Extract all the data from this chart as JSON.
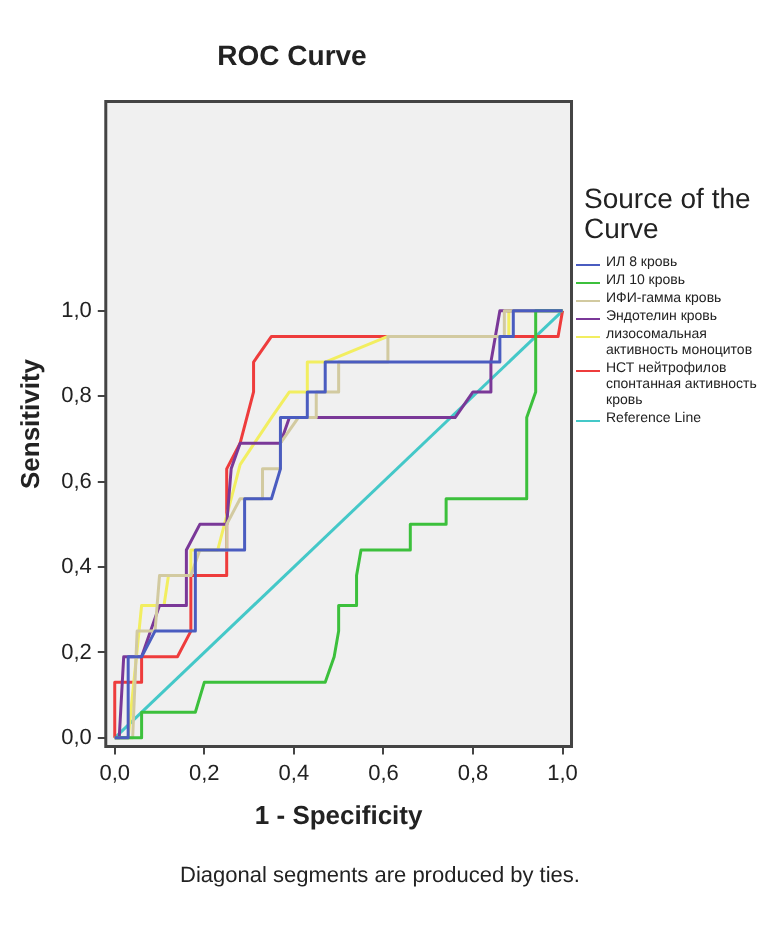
{
  "chart_data": {
    "type": "line",
    "title": "ROC Curve",
    "xlabel": "1 - Specificity",
    "ylabel": "Sensitivity",
    "legend_title": "Source of the Curve",
    "legend": "right",
    "grid": false,
    "marker": "none",
    "xlim": [
      -0.02,
      1.02
    ],
    "ylim": [
      -0.02,
      1.49
    ],
    "xticks": [
      {
        "value": 0,
        "label": "0,0"
      },
      {
        "value": 0.2,
        "label": "0,2"
      },
      {
        "value": 0.4,
        "label": "0,4"
      },
      {
        "value": 0.6,
        "label": "0,6"
      },
      {
        "value": 0.8,
        "label": "0,8"
      },
      {
        "value": 1,
        "label": "1,0"
      }
    ],
    "yticks": [
      {
        "value": 0,
        "label": "0,0"
      },
      {
        "value": 0.2,
        "label": "0,2"
      },
      {
        "value": 0.4,
        "label": "0,4"
      },
      {
        "value": 0.6,
        "label": "0,6"
      },
      {
        "value": 0.8,
        "label": "0,8"
      },
      {
        "value": 1,
        "label": "1,0"
      }
    ],
    "annotations": [
      "Diagonal segments are produced by ties."
    ],
    "series": [
      {
        "name": "ИЛ 8 кровь",
        "color": "#4a5cc0",
        "x": [
          0,
          0.03,
          0.03,
          0.06,
          0.09,
          0.18,
          0.18,
          0.29,
          0.29,
          0.35,
          0.37,
          0.37,
          0.43,
          0.43,
          0.47,
          0.47,
          0.86,
          0.86,
          0.89,
          0.89,
          1
        ],
        "values": [
          0,
          0,
          0.19,
          0.19,
          0.25,
          0.25,
          0.44,
          0.44,
          0.56,
          0.56,
          0.63,
          0.75,
          0.75,
          0.81,
          0.81,
          0.88,
          0.88,
          0.94,
          0.94,
          1,
          1
        ]
      },
      {
        "name": "ИЛ 10 кровь",
        "color": "#3cc03c",
        "x": [
          0,
          0.06,
          0.06,
          0.18,
          0.2,
          0.47,
          0.49,
          0.5,
          0.5,
          0.54,
          0.54,
          0.55,
          0.66,
          0.66,
          0.74,
          0.74,
          0.92,
          0.92,
          0.94,
          0.94,
          1
        ],
        "values": [
          0,
          0,
          0.06,
          0.06,
          0.13,
          0.13,
          0.19,
          0.25,
          0.31,
          0.31,
          0.38,
          0.44,
          0.44,
          0.5,
          0.5,
          0.56,
          0.56,
          0.75,
          0.81,
          1,
          1
        ]
      },
      {
        "name": "ИФИ-гамма кровь",
        "color": "#d2caa0",
        "x": [
          0,
          0.04,
          0.05,
          0.09,
          0.1,
          0.17,
          0.19,
          0.25,
          0.25,
          0.28,
          0.33,
          0.33,
          0.37,
          0.37,
          0.41,
          0.45,
          0.45,
          0.5,
          0.5,
          0.61,
          0.61,
          0.87,
          0.87,
          1
        ],
        "values": [
          0,
          0,
          0.25,
          0.25,
          0.38,
          0.38,
          0.44,
          0.44,
          0.5,
          0.56,
          0.56,
          0.63,
          0.63,
          0.69,
          0.75,
          0.75,
          0.81,
          0.81,
          0.88,
          0.88,
          0.94,
          0.94,
          1,
          1
        ]
      },
      {
        "name": "Эндотелин кровь",
        "color": "#7a3898",
        "x": [
          0,
          0.01,
          0.02,
          0.06,
          0.08,
          0.1,
          0.16,
          0.16,
          0.19,
          0.25,
          0.26,
          0.28,
          0.37,
          0.39,
          0.76,
          0.8,
          0.84,
          0.84,
          0.86,
          1
        ],
        "values": [
          0,
          0,
          0.19,
          0.19,
          0.25,
          0.31,
          0.31,
          0.44,
          0.5,
          0.5,
          0.63,
          0.69,
          0.69,
          0.75,
          0.75,
          0.81,
          0.81,
          0.88,
          1,
          1
        ]
      },
      {
        "name": "лизосомальная активность моноцитов",
        "color": "#f2ee60",
        "x": [
          0,
          0.03,
          0.06,
          0.11,
          0.12,
          0.17,
          0.17,
          0.23,
          0.28,
          0.35,
          0.39,
          0.43,
          0.43,
          0.47,
          0.61,
          0.88,
          0.88,
          1
        ],
        "values": [
          0,
          0,
          0.31,
          0.31,
          0.38,
          0.38,
          0.44,
          0.44,
          0.64,
          0.75,
          0.81,
          0.81,
          0.88,
          0.88,
          0.94,
          0.94,
          1,
          1
        ]
      },
      {
        "name": "НСТ нейтрофилов спонтанная активность кровь",
        "color": "#ee3c3c",
        "x": [
          0,
          0,
          0.06,
          0.06,
          0.14,
          0.17,
          0.17,
          0.25,
          0.25,
          0.28,
          0.31,
          0.31,
          0.35,
          0.99,
          1
        ],
        "values": [
          0,
          0.13,
          0.13,
          0.19,
          0.19,
          0.25,
          0.38,
          0.38,
          0.63,
          0.69,
          0.81,
          0.88,
          0.94,
          0.94,
          1
        ]
      },
      {
        "name": "Reference Line",
        "color": "#44c8c8",
        "x": [
          0,
          1
        ],
        "values": [
          0,
          1
        ]
      }
    ]
  }
}
